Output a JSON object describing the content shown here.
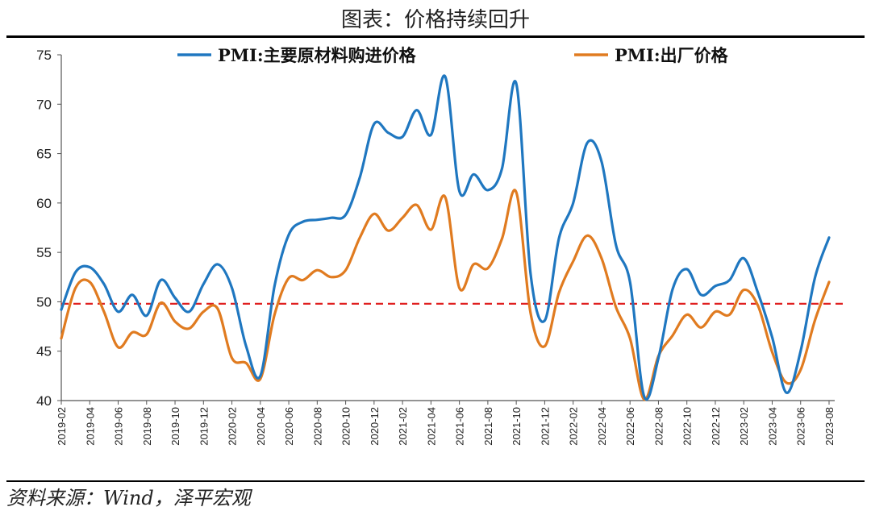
{
  "header": {
    "title": "图表：价格持续回升"
  },
  "footer": {
    "source": "资料来源：Wind，泽平宏观"
  },
  "colors": {
    "series1": "#1f77c0",
    "series2": "#e07b20",
    "ref_line": "#e02020"
  },
  "chart_data": {
    "type": "line",
    "title": "图表：价格持续回升",
    "xlabel": "",
    "ylabel": "",
    "ylim": [
      40,
      75
    ],
    "yticks": [
      40,
      45,
      50,
      55,
      60,
      65,
      70,
      75
    ],
    "reference_line": 49.8,
    "legend_position": "top",
    "grid": false,
    "x": [
      "2019-02",
      "2019-03",
      "2019-04",
      "2019-05",
      "2019-06",
      "2019-07",
      "2019-08",
      "2019-09",
      "2019-10",
      "2019-11",
      "2019-12",
      "2020-01",
      "2020-02",
      "2020-03",
      "2020-04",
      "2020-05",
      "2020-06",
      "2020-07",
      "2020-08",
      "2020-09",
      "2020-10",
      "2020-11",
      "2020-12",
      "2021-01",
      "2021-02",
      "2021-03",
      "2021-04",
      "2021-05",
      "2021-06",
      "2021-07",
      "2021-08",
      "2021-09",
      "2021-10",
      "2021-11",
      "2021-12",
      "2022-01",
      "2022-02",
      "2022-03",
      "2022-04",
      "2022-05",
      "2022-06",
      "2022-07",
      "2022-08",
      "2022-09",
      "2022-10",
      "2022-11",
      "2022-12",
      "2023-01",
      "2023-02",
      "2023-03",
      "2023-04",
      "2023-05",
      "2023-06",
      "2023-07",
      "2023-08"
    ],
    "xtick_labels": [
      "2019-02",
      "2019-04",
      "2019-06",
      "2019-08",
      "2019-10",
      "2019-12",
      "2020-02",
      "2020-04",
      "2020-06",
      "2020-08",
      "2020-10",
      "2020-12",
      "2021-02",
      "2021-04",
      "2021-06",
      "2021-08",
      "2021-10",
      "2021-12",
      "2022-02",
      "2022-04",
      "2022-06",
      "2022-08",
      "2022-10",
      "2022-12",
      "2023-02",
      "2023-04",
      "2023-06",
      "2023-08"
    ],
    "series": [
      {
        "name": "PMI:主要原材料购进价格",
        "values": [
          49.2,
          53.0,
          53.5,
          51.8,
          49.0,
          50.7,
          48.6,
          52.2,
          50.4,
          49.0,
          51.8,
          53.8,
          51.4,
          45.5,
          42.5,
          51.6,
          56.8,
          58.1,
          58.3,
          58.5,
          58.8,
          62.6,
          68.0,
          67.1,
          66.7,
          69.4,
          66.9,
          72.8,
          61.2,
          62.9,
          61.3,
          63.5,
          72.1,
          52.9,
          48.1,
          56.4,
          60.0,
          66.1,
          64.2,
          55.8,
          52.0,
          40.4,
          44.3,
          51.3,
          53.3,
          50.7,
          51.6,
          52.2,
          54.4,
          50.9,
          46.4,
          40.8,
          45.0,
          52.4,
          56.5
        ]
      },
      {
        "name": "PMI:出厂价格",
        "values": [
          46.3,
          51.4,
          52.0,
          49.0,
          45.4,
          46.9,
          46.7,
          49.9,
          48.0,
          47.3,
          49.0,
          49.3,
          44.3,
          43.8,
          42.2,
          48.7,
          52.4,
          52.2,
          53.2,
          52.5,
          53.2,
          56.5,
          58.9,
          57.2,
          58.5,
          59.8,
          57.3,
          60.6,
          51.4,
          53.8,
          53.4,
          56.4,
          61.1,
          48.9,
          45.5,
          50.9,
          54.1,
          56.7,
          54.4,
          49.5,
          46.3,
          40.1,
          44.5,
          46.6,
          48.7,
          47.4,
          49.0,
          48.7,
          51.2,
          49.6,
          44.9,
          41.8,
          43.1,
          48.1,
          52.0
        ]
      }
    ]
  }
}
